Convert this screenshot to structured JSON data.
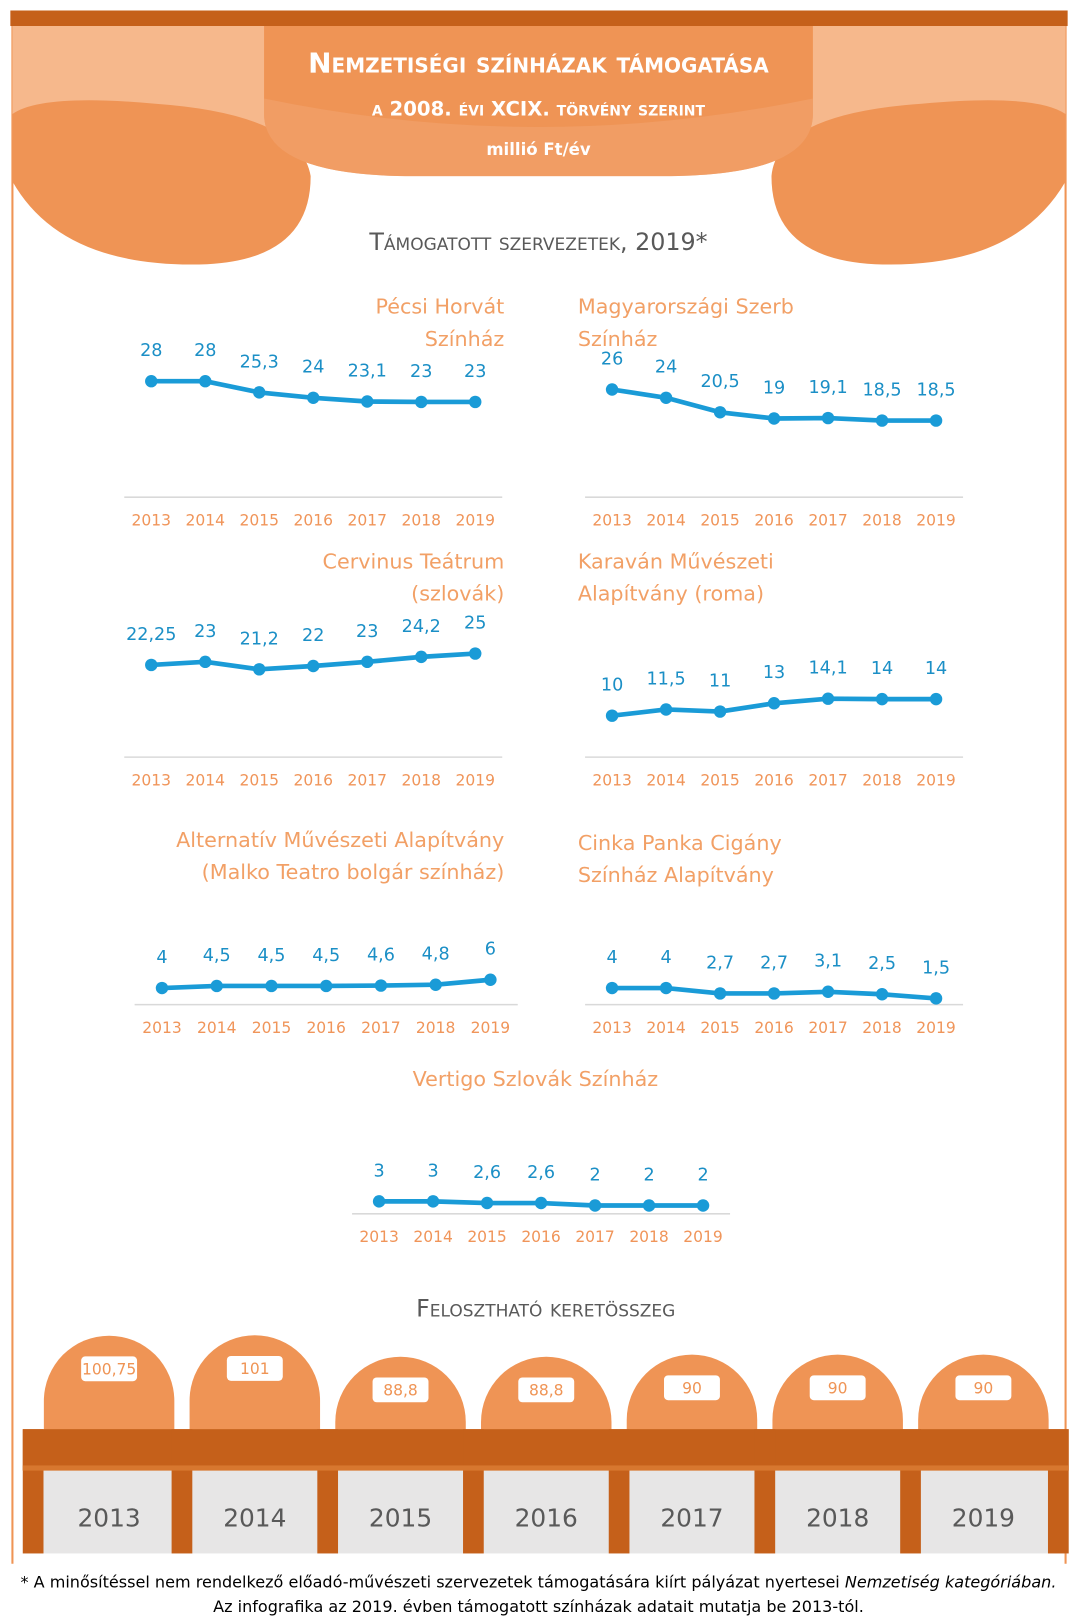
{
  "header": {
    "title": "Nemzetiségi színházak támogatása",
    "subtitle": "a 2008. évi XCIX. törvény szerint",
    "unit": "millió Ft/év"
  },
  "section_title": "Támogatott szervezetek, 2019*",
  "chart_data": [
    {
      "type": "line",
      "title": [
        "Pécsi Horvát",
        "Színház"
      ],
      "categories": [
        "2013",
        "2014",
        "2015",
        "2016",
        "2017",
        "2018",
        "2019"
      ],
      "values": [
        28,
        28,
        25.3,
        24,
        23.1,
        23,
        23
      ],
      "value_labels": [
        "28",
        "28",
        "25,3",
        "24",
        "23,1",
        "23",
        "23"
      ],
      "color": "#1a9bd7"
    },
    {
      "type": "line",
      "title": [
        "Magyarországi Szerb",
        "Színház"
      ],
      "categories": [
        "2013",
        "2014",
        "2015",
        "2016",
        "2017",
        "2018",
        "2019"
      ],
      "values": [
        26,
        24,
        20.5,
        19,
        19.1,
        18.5,
        18.5
      ],
      "value_labels": [
        "26",
        "24",
        "20,5",
        "19",
        "19,1",
        "18,5",
        "18,5"
      ],
      "color": "#1a9bd7"
    },
    {
      "type": "line",
      "title": [
        "Cervinus Teátrum",
        "(szlovák)"
      ],
      "categories": [
        "2013",
        "2014",
        "2015",
        "2016",
        "2017",
        "2018",
        "2019"
      ],
      "values": [
        22.25,
        23,
        21.2,
        22,
        23,
        24.2,
        25
      ],
      "value_labels": [
        "22,25",
        "23",
        "21,2",
        "22",
        "23",
        "24,2",
        "25"
      ],
      "color": "#1a9bd7"
    },
    {
      "type": "line",
      "title": [
        "Karaván Művészeti",
        "Alapítvány (roma)"
      ],
      "categories": [
        "2013",
        "2014",
        "2015",
        "2016",
        "2017",
        "2018",
        "2019"
      ],
      "values": [
        10,
        11.5,
        11,
        13,
        14.1,
        14,
        14
      ],
      "value_labels": [
        "10",
        "11,5",
        "11",
        "13",
        "14,1",
        "14",
        "14"
      ],
      "color": "#1a9bd7"
    },
    {
      "type": "line",
      "title": [
        "Alternatív Művészeti Alapítvány",
        "(Malko Teatro  bolgár színház)"
      ],
      "categories": [
        "2013",
        "2014",
        "2015",
        "2016",
        "2017",
        "2018",
        "2019"
      ],
      "values": [
        4,
        4.5,
        4.5,
        4.5,
        4.6,
        4.8,
        6
      ],
      "value_labels": [
        "4",
        "4,5",
        "4,5",
        "4,5",
        "4,6",
        "4,8",
        "6"
      ],
      "color": "#1a9bd7"
    },
    {
      "type": "line",
      "title": [
        "Cinka Panka Cigány",
        "Színház Alapítvány"
      ],
      "categories": [
        "2013",
        "2014",
        "2015",
        "2016",
        "2017",
        "2018",
        "2019"
      ],
      "values": [
        4,
        4,
        2.7,
        2.7,
        3.1,
        2.5,
        1.5
      ],
      "value_labels": [
        "4",
        "4",
        "2,7",
        "2,7",
        "3,1",
        "2,5",
        "1,5"
      ],
      "color": "#1a9bd7"
    },
    {
      "type": "line",
      "title": [
        "Vertigo Szlovák Színház"
      ],
      "categories": [
        "2013",
        "2014",
        "2015",
        "2016",
        "2017",
        "2018",
        "2019"
      ],
      "values": [
        3,
        3,
        2.6,
        2.6,
        2,
        2,
        2
      ],
      "value_labels": [
        "3",
        "3",
        "2,6",
        "2,6",
        "2",
        "2",
        "2"
      ],
      "color": "#1a9bd7"
    },
    {
      "type": "bar",
      "title": "Felosztható keretösszeg",
      "categories": [
        "2013",
        "2014",
        "2015",
        "2016",
        "2017",
        "2018",
        "2019"
      ],
      "values": [
        100.75,
        101,
        88.8,
        88.8,
        90,
        90,
        90
      ],
      "value_labels": [
        "100,75",
        "101",
        "88,8",
        "88,8",
        "90",
        "90",
        "90"
      ],
      "color": "#ef9455"
    }
  ],
  "footnote": {
    "text1": "* A minősítéssel nem rendelkező előadó-művészeti szervezetek támogatására kiírt pályázat nyertesei ",
    "italic": "Nemzetiség kategóriában.",
    "text2": "  Az infografika az 2019. évben támogatott színházak adatait mutatja be 2013-tól."
  }
}
